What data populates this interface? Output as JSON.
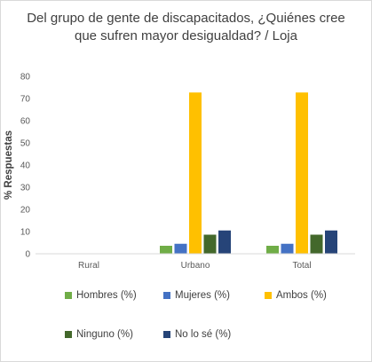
{
  "chart_data": {
    "type": "bar",
    "title_lines": [
      "Del grupo de gente de discapacitados, ¿Quiénes cree",
      "que sufren mayor desigualdad? / Loja"
    ],
    "xlabel": "",
    "ylabel": "% Respuestas",
    "ylim": [
      0,
      80
    ],
    "yticks": [
      0,
      10,
      20,
      30,
      40,
      50,
      60,
      70,
      80
    ],
    "grid": false,
    "legend_position": "bottom",
    "categories": [
      "Rural",
      "Urbano",
      "Total"
    ],
    "series": [
      {
        "name": "Hombres (%)",
        "color": "#70ad47",
        "values": [
          0,
          3.6,
          3.6
        ]
      },
      {
        "name": "Mujeres (%)",
        "color": "#4472c4",
        "values": [
          0,
          4.5,
          4.5
        ]
      },
      {
        "name": "Ambos (%)",
        "color": "#ffc000",
        "values": [
          0,
          72.7,
          72.7
        ]
      },
      {
        "name": "Ninguno (%)",
        "color": "#43682b",
        "values": [
          0,
          8.6,
          8.6
        ]
      },
      {
        "name": "No lo sé (%)",
        "color": "#264478",
        "values": [
          0,
          10.5,
          10.5
        ]
      }
    ]
  }
}
